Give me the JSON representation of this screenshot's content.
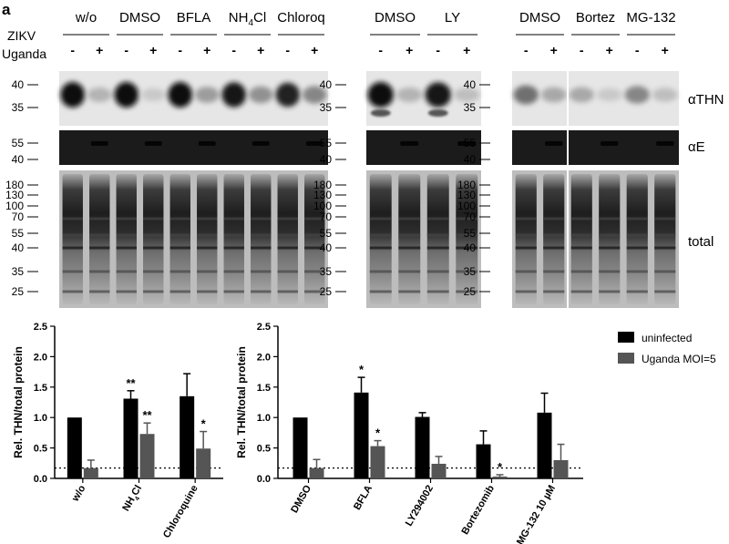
{
  "figure": {
    "panel_letter": "a",
    "infection_label_line1": "ZIKV",
    "infection_label_line2": "Uganda",
    "blot1": {
      "groups": [
        "w/o",
        "DMSO",
        "BFLA",
        "NH4Cl",
        "Chloroq"
      ],
      "lanes": [
        "-",
        "+",
        "-",
        "+",
        "-",
        "+",
        "-",
        "+",
        "-",
        "+"
      ],
      "thn_markers": [
        "40",
        "35"
      ],
      "e_markers": [
        "55",
        "40"
      ],
      "total_markers": [
        "180",
        "130",
        "100",
        "70",
        "55",
        "40",
        "35",
        "25"
      ]
    },
    "blot2": {
      "groups": [
        "DMSO",
        "LY"
      ],
      "lanes": [
        "-",
        "+",
        "-",
        "+"
      ],
      "thn_markers": [
        "40",
        "35"
      ],
      "e_markers": [
        "55",
        "40"
      ],
      "total_markers": [
        "180",
        "130",
        "100",
        "70",
        "55",
        "40",
        "35",
        "25"
      ]
    },
    "blot3": {
      "groups": [
        "DMSO",
        "Bortez",
        "MG-132"
      ],
      "lanes": [
        "-",
        "+",
        "-",
        "+",
        "-",
        "+"
      ],
      "thn_markers": [
        "40",
        "35"
      ],
      "e_markers": [
        "55",
        "40"
      ],
      "total_markers": [
        "180",
        "130",
        "100",
        "70",
        "55",
        "40",
        "35",
        "25"
      ]
    },
    "row_labels": {
      "thn": "αTHN",
      "e": "αE",
      "total": "total"
    }
  },
  "chart_data": [
    {
      "type": "bar",
      "ylabel": "Rel. THN/total protein",
      "ylim": [
        0,
        2.5
      ],
      "yticks": [
        "0.0",
        "0.5",
        "1.0",
        "1.5",
        "2.0",
        "2.5"
      ],
      "categories": [
        "w/o",
        "NH4Cl",
        "Chloroquine"
      ],
      "series": [
        {
          "name": "uninfected",
          "values": [
            1.0,
            1.31,
            1.35
          ],
          "errors": [
            0,
            0.13,
            0.37
          ],
          "sig": [
            "",
            "**",
            ""
          ]
        },
        {
          "name": "Uganda MOI=5",
          "values": [
            0.17,
            0.73,
            0.49
          ],
          "errors": [
            0.13,
            0.18,
            0.28
          ],
          "sig": [
            "",
            "**",
            "*"
          ]
        }
      ],
      "reference_line": 0.17,
      "colors": [
        "#000000",
        "#555555"
      ]
    },
    {
      "type": "bar",
      "ylabel": "Rel. THN/total protein",
      "ylim": [
        0,
        2.5
      ],
      "yticks": [
        "0.0",
        "0.5",
        "1.0",
        "1.5",
        "2.0",
        "2.5"
      ],
      "categories": [
        "DMSO",
        "BFLA",
        "LY294002",
        "Bortezomib",
        "MG-132 10 µM"
      ],
      "series": [
        {
          "name": "uninfected",
          "values": [
            1.0,
            1.41,
            1.01,
            0.56,
            1.08
          ],
          "errors": [
            0,
            0.25,
            0.07,
            0.22,
            0.32
          ],
          "sig": [
            "",
            "*",
            "",
            "",
            ""
          ]
        },
        {
          "name": "Uganda MOI=5",
          "values": [
            0.17,
            0.53,
            0.24,
            0.03,
            0.3
          ],
          "errors": [
            0.14,
            0.09,
            0.12,
            0.03,
            0.26
          ],
          "sig": [
            "",
            "*",
            "",
            "*",
            ""
          ]
        }
      ],
      "reference_line": 0.17,
      "colors": [
        "#000000",
        "#555555"
      ]
    }
  ],
  "legend": {
    "items": [
      "uninfected",
      "Uganda MOI=5"
    ],
    "colors": [
      "#000000",
      "#555555"
    ]
  }
}
